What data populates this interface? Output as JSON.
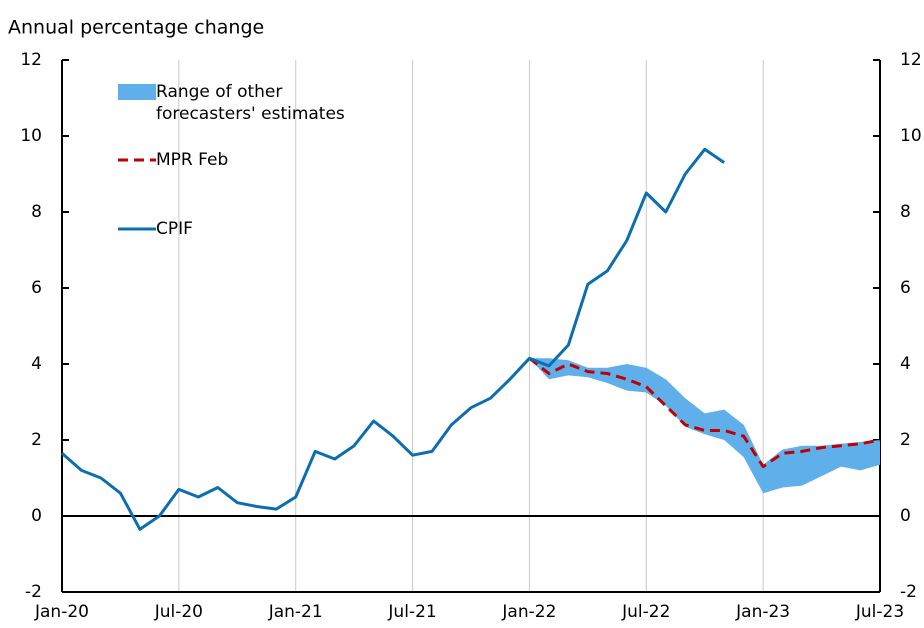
{
  "chart_data": {
    "type": "line",
    "title": "Annual percentage change",
    "categories": [
      "Jan-20",
      null,
      null,
      null,
      null,
      null,
      "Jul-20",
      null,
      null,
      null,
      null,
      null,
      "Jan-21",
      null,
      null,
      null,
      null,
      null,
      "Jul-21",
      null,
      null,
      null,
      null,
      null,
      "Jan-22",
      null,
      null,
      null,
      null,
      null,
      "Jul-22",
      null,
      null,
      null,
      null,
      null,
      "Jan-23",
      null,
      null,
      null,
      null,
      null,
      "Jul-23"
    ],
    "series": [
      {
        "name": "Range of other forecasters' estimates",
        "color": "#5fb0ea",
        "high": [
          null,
          null,
          null,
          null,
          null,
          null,
          null,
          null,
          null,
          null,
          null,
          null,
          null,
          null,
          null,
          null,
          null,
          null,
          null,
          null,
          null,
          null,
          null,
          null,
          4.15,
          4.15,
          4.1,
          3.9,
          3.9,
          4.0,
          3.9,
          3.6,
          3.1,
          2.7,
          2.8,
          2.4,
          1.35,
          1.75,
          1.85,
          1.85,
          1.9,
          1.95,
          2.0
        ],
        "low": [
          null,
          null,
          null,
          null,
          null,
          null,
          null,
          null,
          null,
          null,
          null,
          null,
          null,
          null,
          null,
          null,
          null,
          null,
          null,
          null,
          null,
          null,
          null,
          null,
          4.15,
          3.6,
          3.7,
          3.65,
          3.5,
          3.3,
          3.25,
          2.9,
          2.35,
          2.15,
          2.0,
          1.55,
          0.6,
          0.75,
          0.8,
          1.05,
          1.3,
          1.2,
          1.35
        ]
      },
      {
        "name": "MPR Feb",
        "color": "#c00000",
        "dashed": true,
        "values": [
          null,
          null,
          null,
          null,
          null,
          null,
          null,
          null,
          null,
          null,
          null,
          null,
          null,
          null,
          null,
          null,
          null,
          null,
          null,
          null,
          null,
          null,
          null,
          null,
          4.15,
          3.75,
          4.0,
          3.8,
          3.75,
          3.6,
          3.4,
          2.9,
          2.4,
          2.25,
          2.25,
          2.1,
          1.3,
          1.65,
          1.7,
          1.8,
          1.85,
          1.9,
          2.0
        ]
      },
      {
        "name": "CPIF",
        "color": "#0b6eb0",
        "values": [
          1.65,
          1.2,
          1.0,
          0.6,
          -0.35,
          0.0,
          0.7,
          0.5,
          0.75,
          0.35,
          0.25,
          0.18,
          0.5,
          1.7,
          1.5,
          1.85,
          2.5,
          2.1,
          1.6,
          1.7,
          2.4,
          2.85,
          3.1,
          3.6,
          4.15,
          3.95,
          4.5,
          6.1,
          6.45,
          7.25,
          8.5,
          8.0,
          9.0,
          9.65,
          9.3,
          null,
          null,
          null,
          null,
          null,
          null,
          null,
          null
        ]
      }
    ],
    "ylim": [
      -2,
      12
    ],
    "yticks": [
      -2,
      0,
      2,
      4,
      6,
      8,
      10,
      12
    ],
    "y2lim": [
      -2,
      12
    ],
    "y2ticks": [
      -2,
      0,
      2,
      4,
      6,
      8,
      10,
      12
    ],
    "grid": true
  }
}
